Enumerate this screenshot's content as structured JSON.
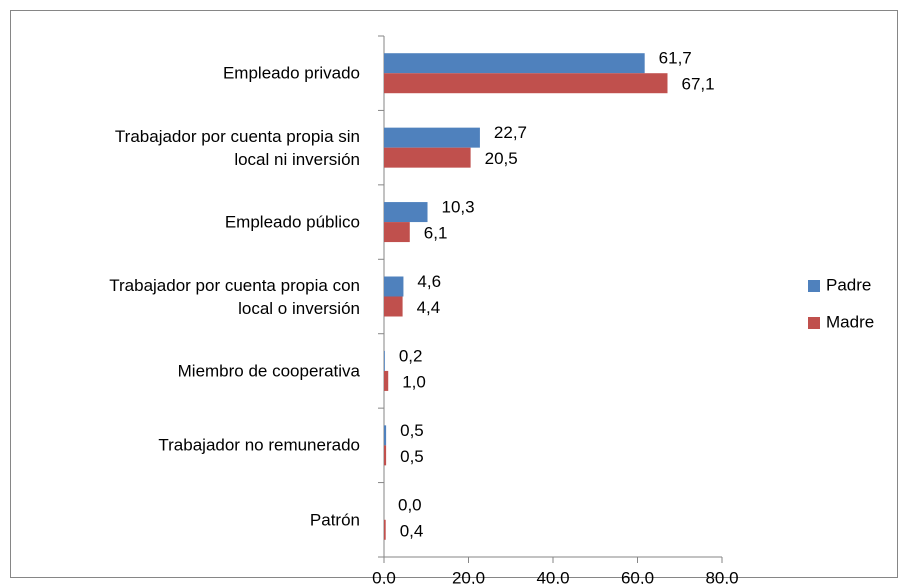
{
  "chart_data": {
    "type": "bar",
    "orientation": "horizontal",
    "categories": [
      "Empleado privado",
      "Trabajador por cuenta propia sin\nlocal ni inversión",
      "Empleado público",
      "Trabajador por cuenta propia con\nlocal o inversión",
      "Miembro de cooperativa",
      "Trabajador no remunerado",
      "Patrón"
    ],
    "series": [
      {
        "name": "Padre",
        "color": "#4f81bd",
        "values": [
          61.7,
          22.7,
          10.3,
          4.6,
          0.2,
          0.5,
          0.0
        ],
        "value_labels": [
          "61,7",
          "22,7",
          "10,3",
          "4,6",
          "0,2",
          "0,5",
          "0,0"
        ]
      },
      {
        "name": "Madre",
        "color": "#c0504d",
        "values": [
          67.1,
          20.5,
          6.1,
          4.4,
          1.0,
          0.5,
          0.4
        ],
        "value_labels": [
          "67,1",
          "20,5",
          "6,1",
          "4,4",
          "1,0",
          "0,5",
          "0,4"
        ]
      }
    ],
    "xlim": [
      0,
      80
    ],
    "xticks": [
      {
        "value": 0,
        "label": "0,0"
      },
      {
        "value": 20,
        "label": "20,0"
      },
      {
        "value": 40,
        "label": "40,0"
      },
      {
        "value": 60,
        "label": "60,0"
      },
      {
        "value": 80,
        "label": "80,0"
      }
    ],
    "legend": "right"
  }
}
